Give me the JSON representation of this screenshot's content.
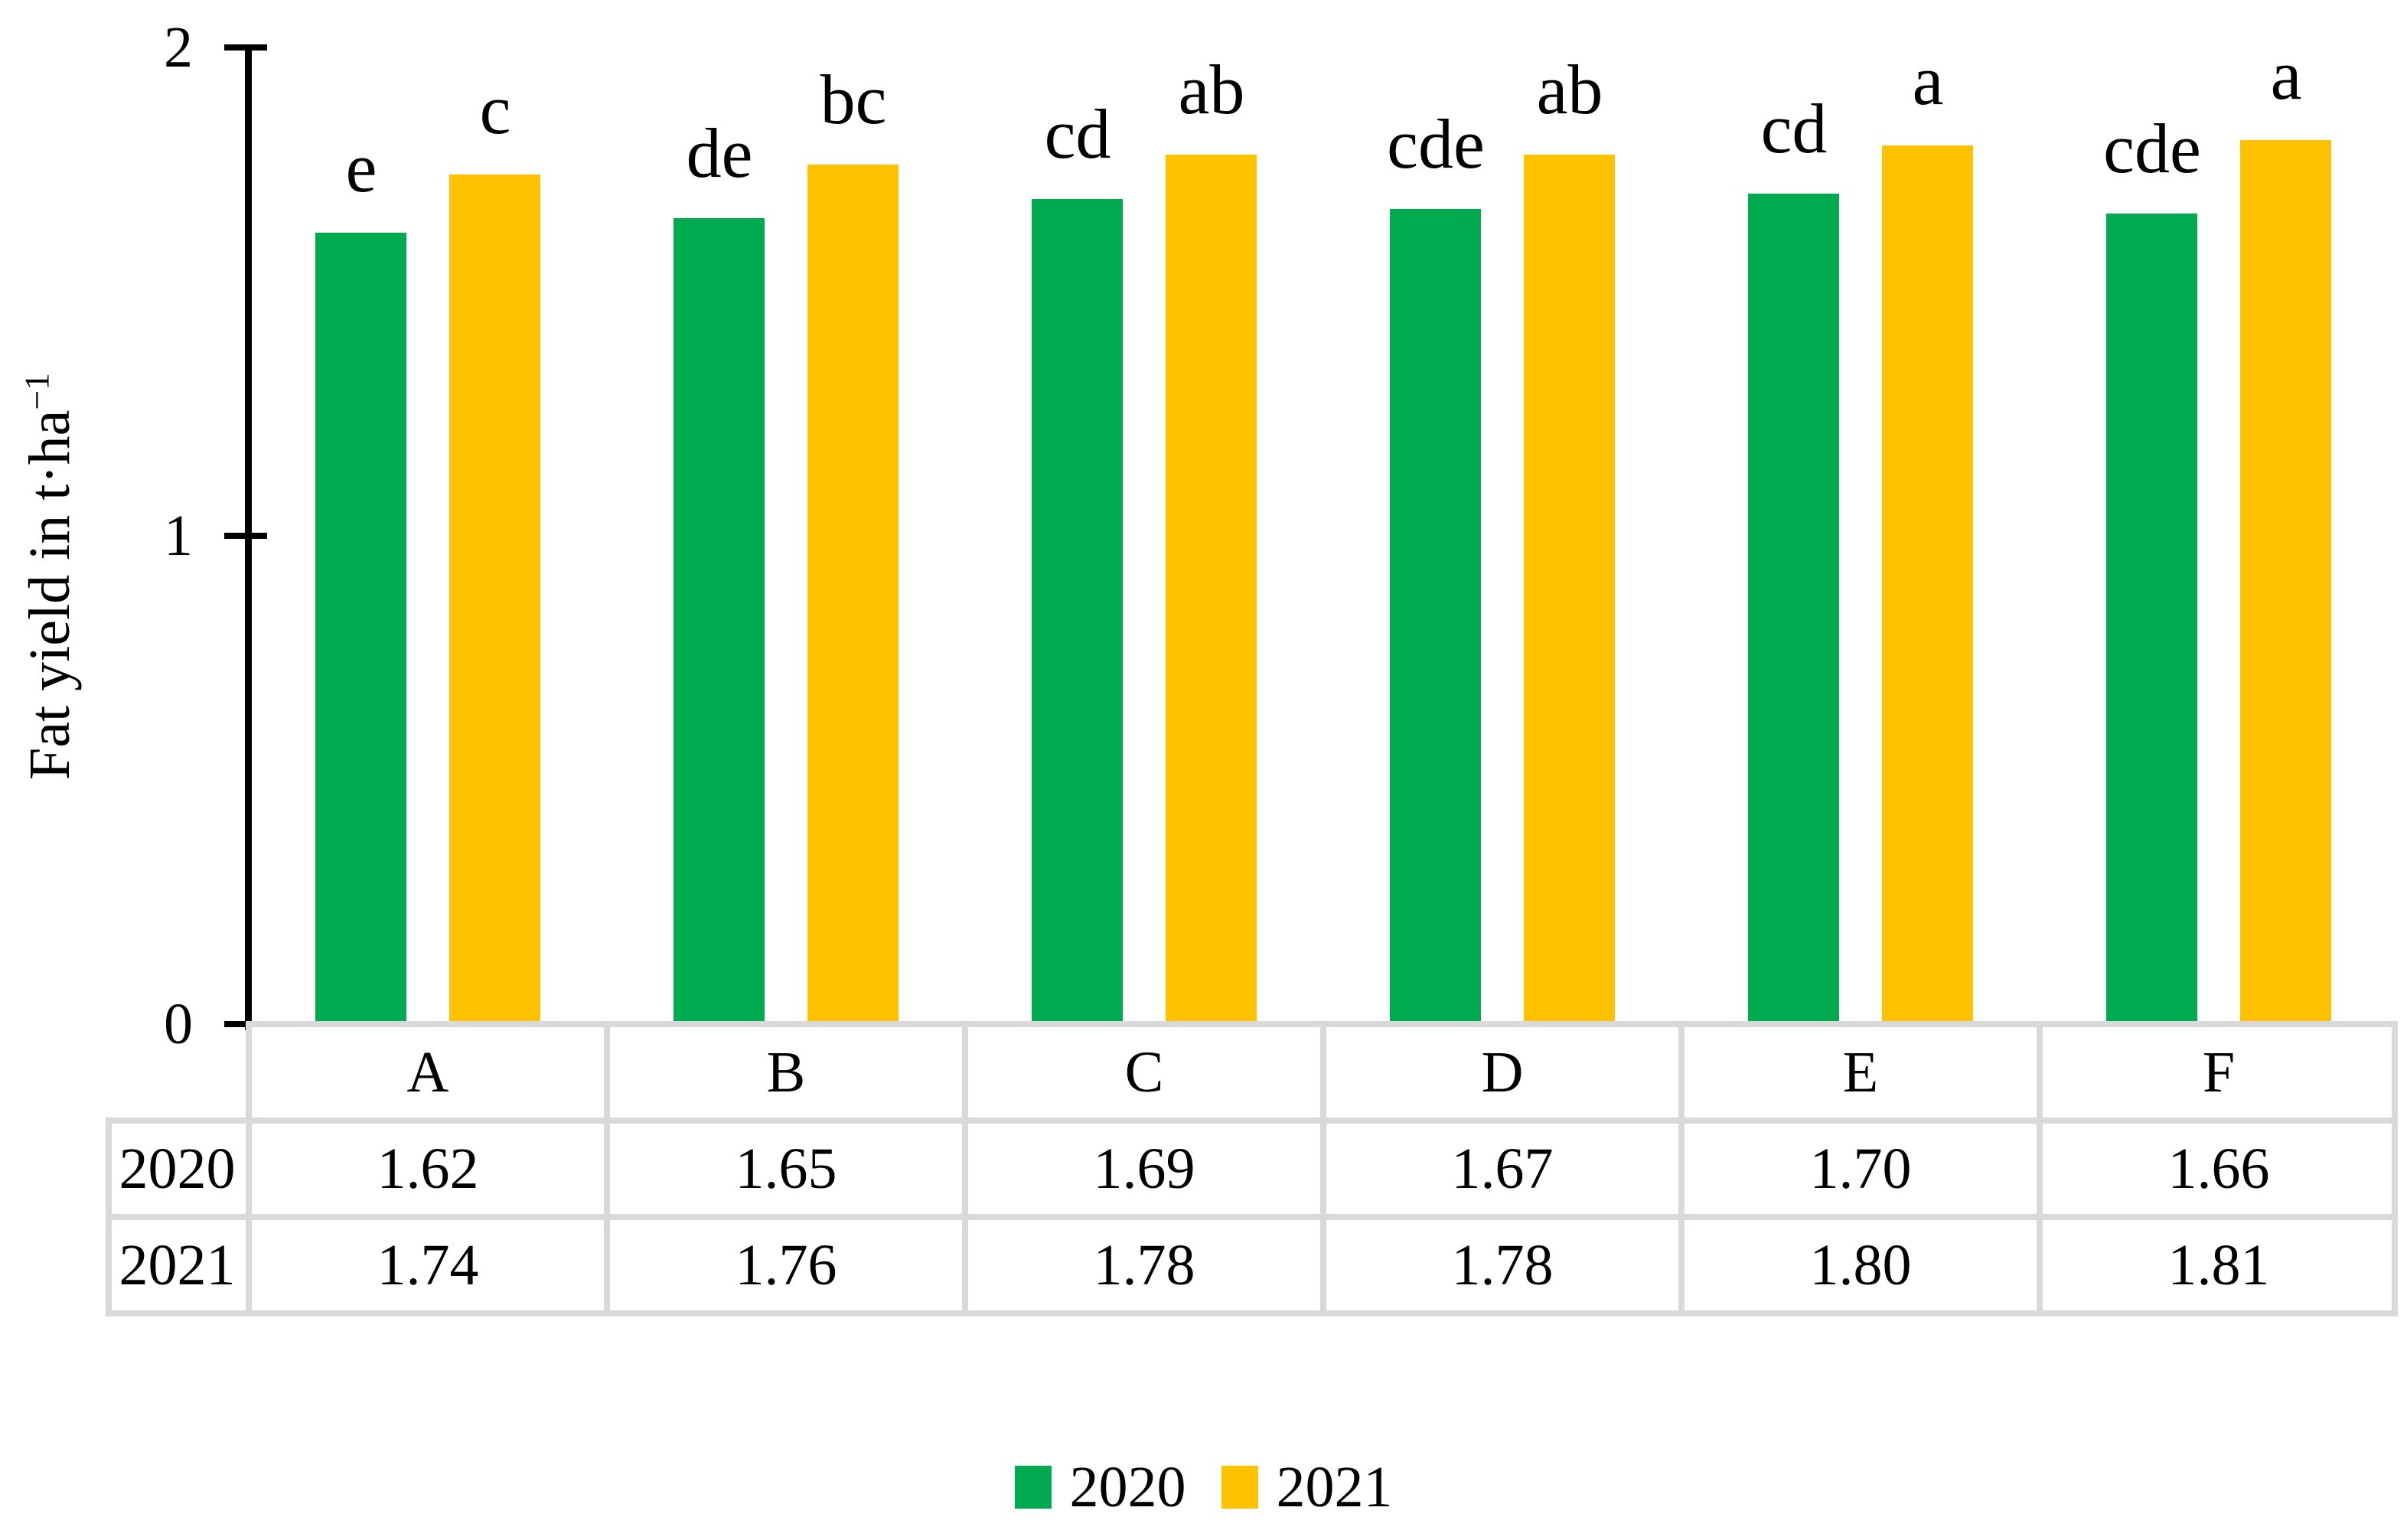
{
  "chart_data": {
    "type": "bar",
    "title": "",
    "ylabel": "Fat yield in t·ha⁻¹",
    "ylabel_parts": {
      "base": "Fat yield in t·ha",
      "sup": "−1"
    },
    "categories": [
      "A",
      "B",
      "C",
      "D",
      "E",
      "F"
    ],
    "series": [
      {
        "name": "2020",
        "color": "#00AB4F",
        "values": [
          1.62,
          1.65,
          1.69,
          1.67,
          1.7,
          1.66
        ],
        "sig_letters": [
          "e",
          "de",
          "cd",
          "cde",
          "cd",
          "cde"
        ]
      },
      {
        "name": "2021",
        "color": "#FFC100",
        "values": [
          1.74,
          1.76,
          1.78,
          1.78,
          1.8,
          1.81
        ],
        "sig_letters": [
          "c",
          "bc",
          "ab",
          "ab",
          "a",
          "a"
        ]
      }
    ],
    "ylim": [
      0,
      2
    ],
    "yticks": [
      {
        "label": "0",
        "value": 0
      },
      {
        "label": "1",
        "value": 1
      },
      {
        "label": "2",
        "value": 2
      }
    ],
    "grid": false,
    "legend_position": "bottom",
    "data_table": {
      "row_labels": [
        "2020",
        "2021"
      ],
      "rows": [
        [
          "1.62",
          "1.65",
          "1.69",
          "1.67",
          "1.70",
          "1.66"
        ],
        [
          "1.74",
          "1.76",
          "1.78",
          "1.78",
          "1.80",
          "1.81"
        ]
      ]
    }
  },
  "colors": {
    "series_2020": "#00AB4F",
    "series_2021": "#FFC100",
    "axis": "#000000",
    "table_border": "#D9D9D9",
    "text": "#000000",
    "background": "#FFFFFF"
  }
}
